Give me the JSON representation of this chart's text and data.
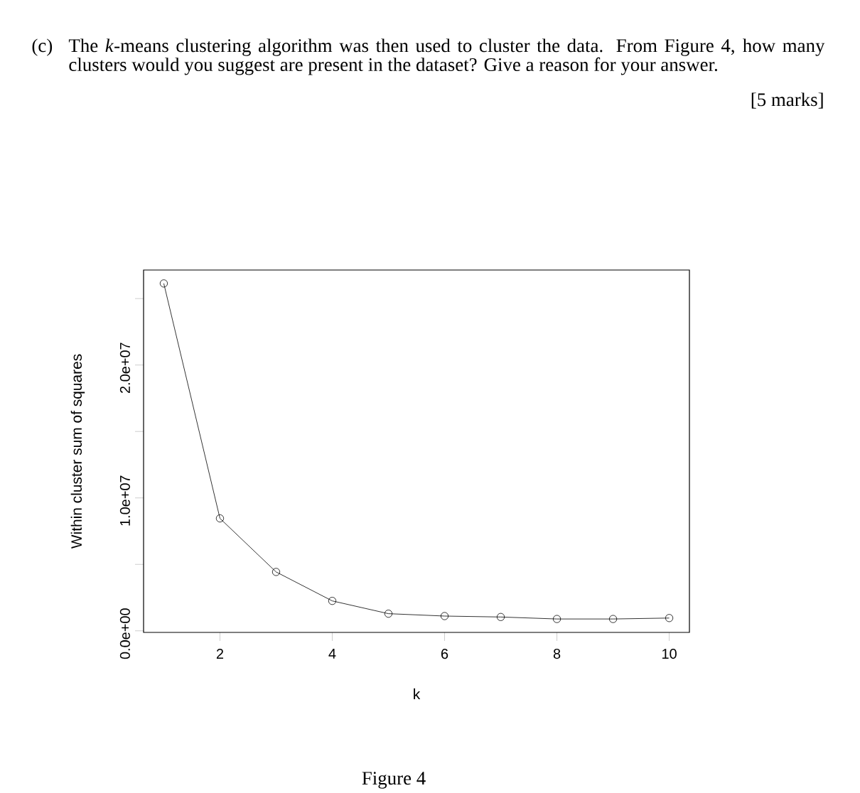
{
  "chart_data": {
    "type": "line",
    "xlabel": "k",
    "ylabel": "Within cluster sum of squares",
    "x": [
      1,
      2,
      3,
      4,
      5,
      6,
      7,
      8,
      9,
      10
    ],
    "values": [
      26140000,
      8460000,
      4430000,
      2250000,
      1290000,
      1110000,
      1040000,
      890000,
      890000,
      960000
    ],
    "color": "#000000",
    "marker": "circle",
    "line_style": "solid",
    "xlim": [
      0.64,
      10.36
    ],
    "xticks": [
      2,
      4,
      6,
      8,
      10
    ],
    "ylim": [
      -120000,
      27150000
    ],
    "yticks": [
      {
        "value": 0,
        "label": "0.0e+00"
      },
      {
        "value": 5000000,
        "label": null
      },
      {
        "value": 10000000,
        "label": "1.0e+07"
      },
      {
        "value": 15000000,
        "label": null
      },
      {
        "value": 20000000,
        "label": "2.0e+07"
      },
      {
        "value": 25000000,
        "label": null
      }
    ],
    "annotations": [
      "(c)",
      "The *k*-means clustering algorithm was then used to cluster the data. From Figure 4, how many clusters would you suggest are present in the dataset? Give a reason for your answer.",
      "[5 marks]",
      "Figure 4"
    ]
  }
}
